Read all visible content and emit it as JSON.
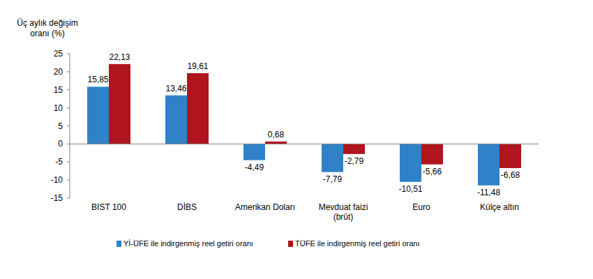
{
  "chart_data": {
    "type": "bar",
    "y_label": "Üç aylık değişim\noranı (%)",
    "categories": [
      "BIST 100",
      "DİBS",
      "Amerikan Doları",
      "Mevduat faizi\n(brüt)",
      "Euro",
      "Külçe altın"
    ],
    "series": [
      {
        "name": "Yİ-ÜFE ile indirgenmiş reel getiri oranı",
        "color": "#2f82c8",
        "values": [
          15.85,
          13.46,
          -4.49,
          -7.79,
          -10.51,
          -11.48
        ],
        "value_labels": [
          "15,85",
          "13,46",
          "-4,49",
          "-7,79",
          "-10,51",
          "-11,48"
        ]
      },
      {
        "name": "TÜFE ile indirgenmiş reel getiri oranı",
        "color": "#b0141c",
        "values": [
          22.13,
          19.61,
          0.68,
          -2.79,
          -5.66,
          -6.68
        ],
        "value_labels": [
          "22,13",
          "19,61",
          "0,68",
          "-2,79",
          "-5,66",
          "-6,68"
        ]
      }
    ],
    "ylim": [
      -15,
      25
    ],
    "yticks": [
      -15,
      -10,
      -5,
      0,
      5,
      10,
      15,
      20,
      25
    ],
    "grid": false,
    "legend": "bottom",
    "data_labels": true
  }
}
